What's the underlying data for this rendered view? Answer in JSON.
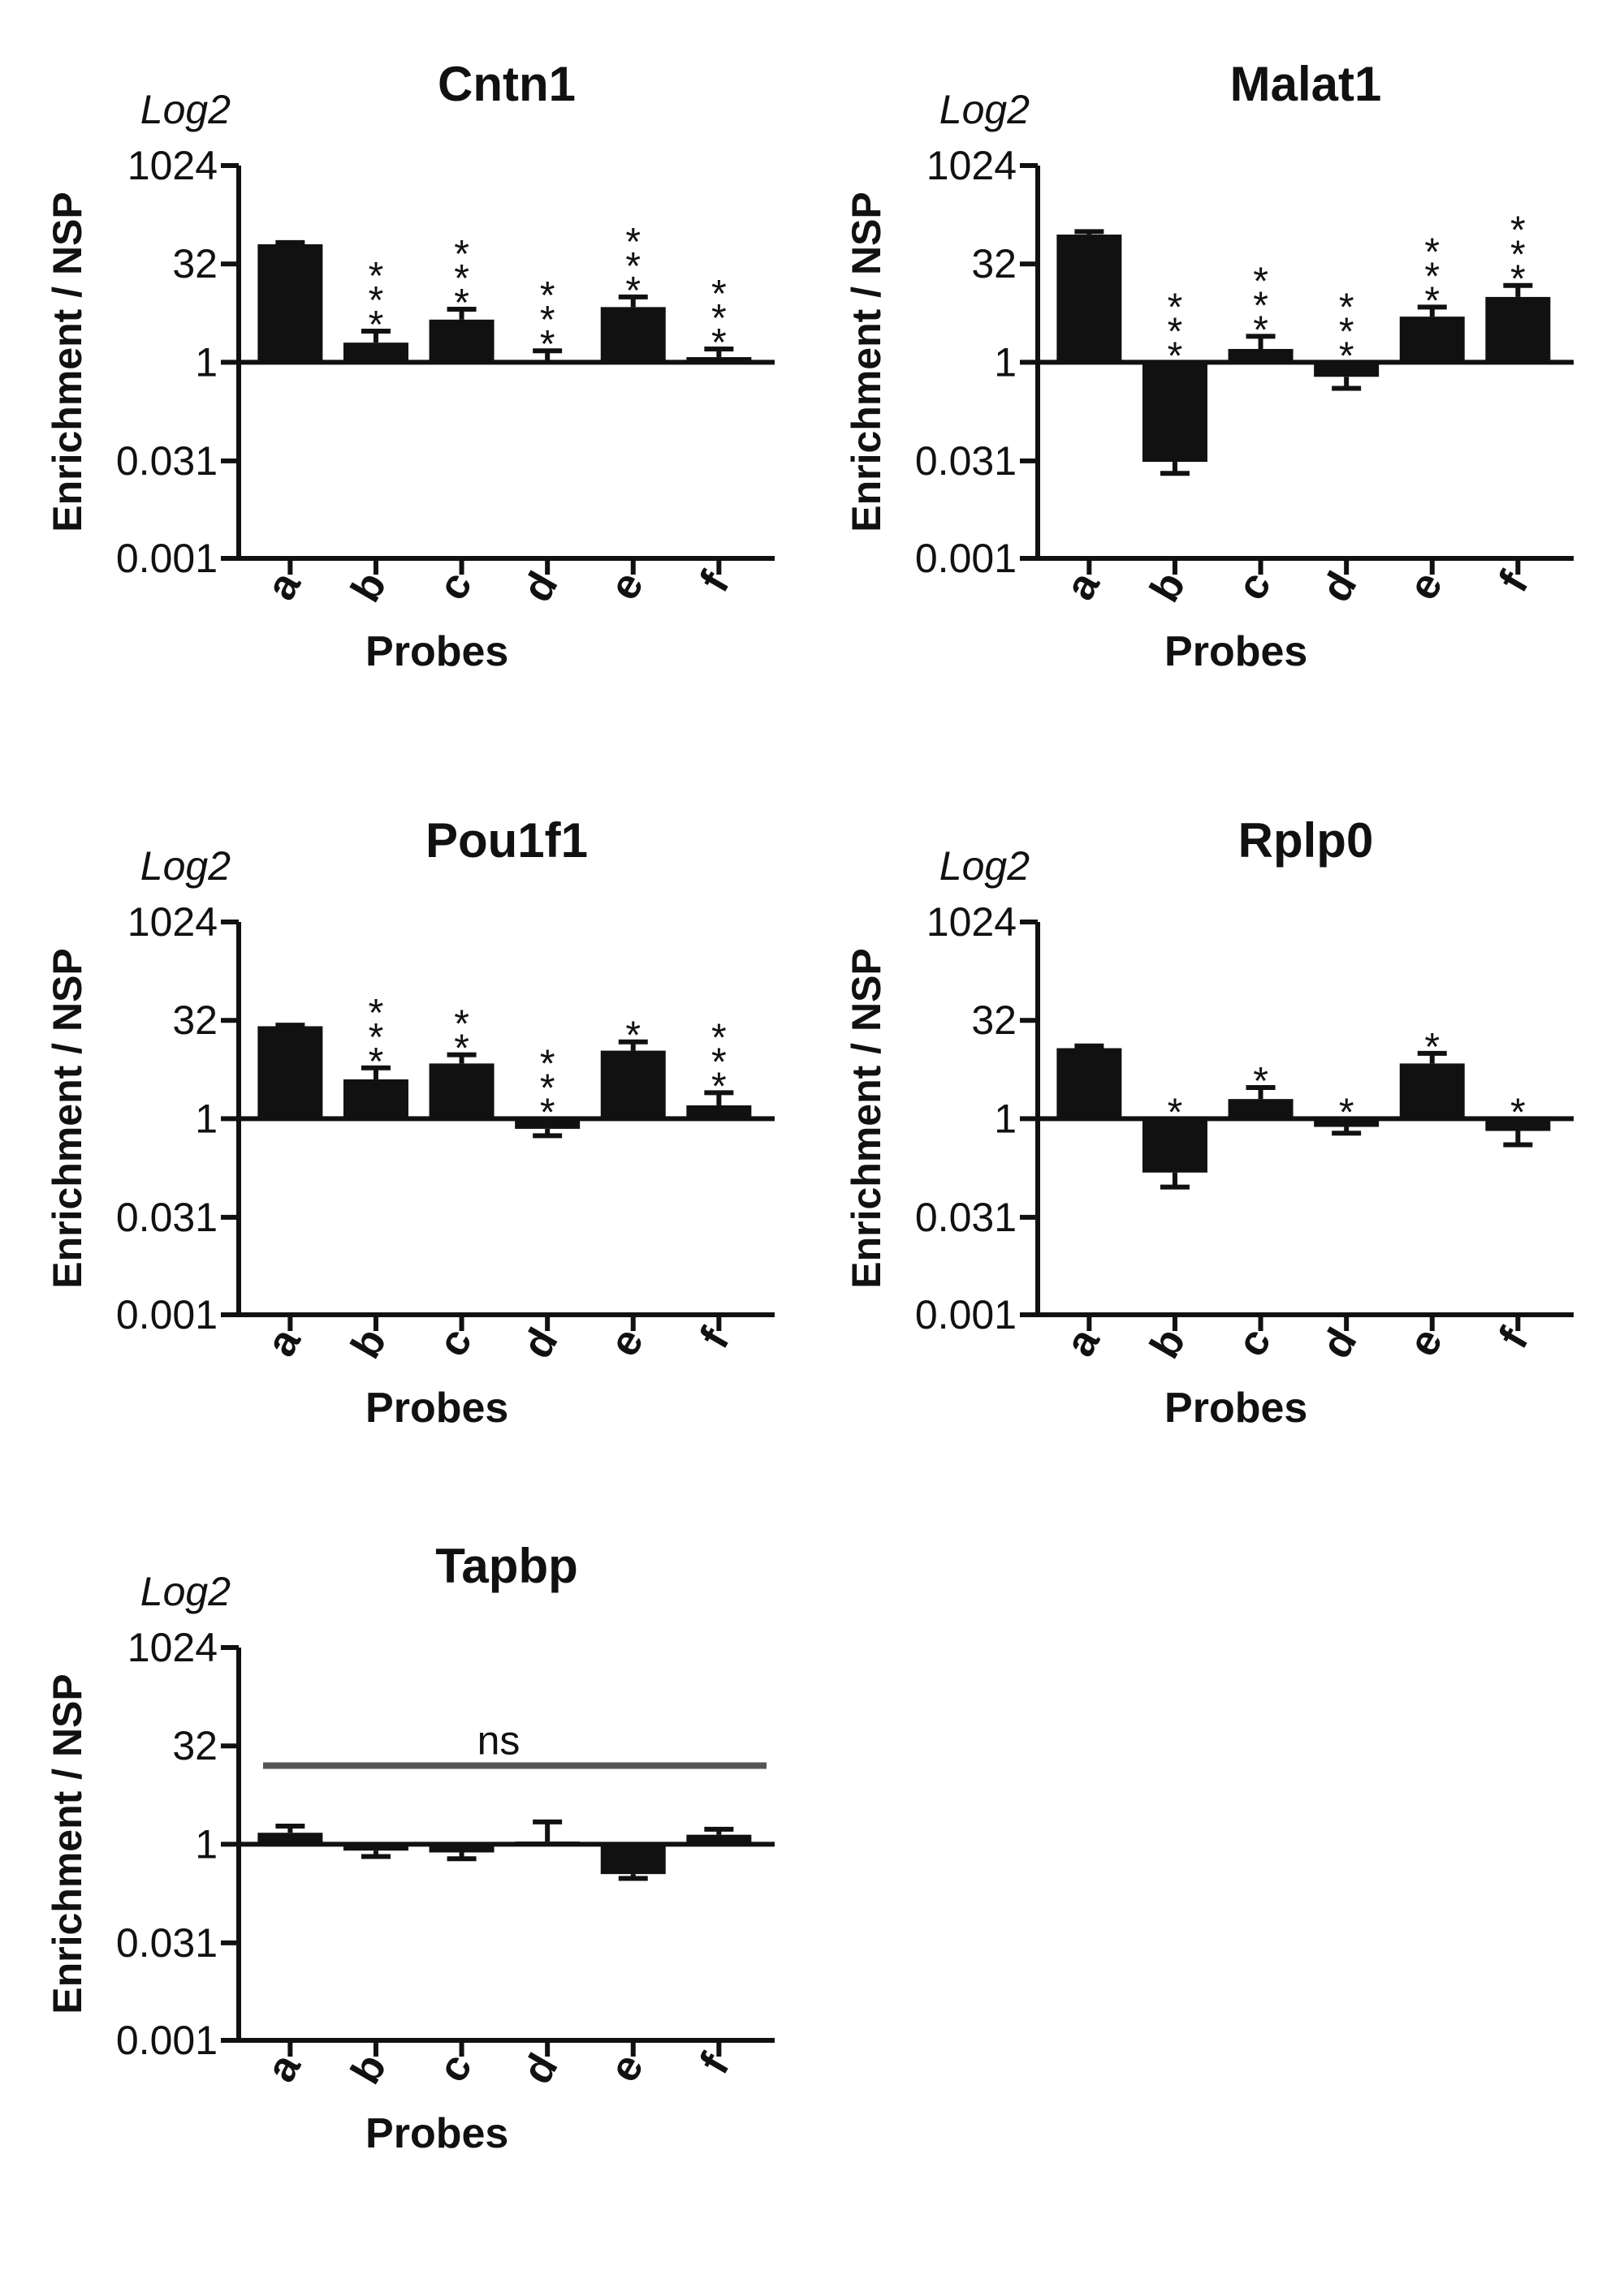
{
  "chart_data": [
    {
      "type": "bar",
      "title": "Cntn1",
      "scale_label": "Log2",
      "ylabel": "Enrichment / NSP",
      "xlabel": "Probes",
      "yscale": "log2",
      "ylim": [
        0.001,
        1024
      ],
      "yticks": [
        1024,
        32,
        1,
        0.031,
        0.001
      ],
      "ytick_labels": [
        "1024",
        "32",
        "1",
        "0.031",
        "0.001"
      ],
      "categories": [
        "a",
        "b",
        "c",
        "d",
        "e",
        "f"
      ],
      "values": [
        64,
        2,
        4.5,
        1.05,
        7,
        1.2
      ],
      "error_upper": [
        68,
        3,
        6.5,
        1.5,
        10,
        1.6
      ],
      "significance": [
        "",
        "***",
        "***",
        "***",
        "***",
        "***"
      ],
      "annotation": ""
    },
    {
      "type": "bar",
      "title": "Malat1",
      "scale_label": "Log2",
      "ylabel": "Enrichment / NSP",
      "xlabel": "Probes",
      "yscale": "log2",
      "ylim": [
        0.001,
        1024
      ],
      "yticks": [
        1024,
        32,
        1,
        0.031,
        0.001
      ],
      "ytick_labels": [
        "1024",
        "32",
        "1",
        "0.031",
        "0.001"
      ],
      "categories": [
        "a",
        "b",
        "c",
        "d",
        "e",
        "f"
      ],
      "values": [
        90,
        0.03,
        1.6,
        0.6,
        5,
        10
      ],
      "error_lower": [
        90,
        0.02,
        1.6,
        0.4,
        5,
        10
      ],
      "error_upper": [
        100,
        0.03,
        2.5,
        0.6,
        7,
        15
      ],
      "significance": [
        "",
        "***",
        "***",
        "***",
        "***",
        "***"
      ],
      "annotation": ""
    },
    {
      "type": "bar",
      "title": "Pou1f1",
      "scale_label": "Log2",
      "ylabel": "Enrichment / NSP",
      "xlabel": "Probes",
      "yscale": "log2",
      "ylim": [
        0.001,
        1024
      ],
      "yticks": [
        1024,
        32,
        1,
        0.031,
        0.001
      ],
      "ytick_labels": [
        "1024",
        "32",
        "1",
        "0.031",
        "0.001"
      ],
      "categories": [
        "a",
        "b",
        "c",
        "d",
        "e",
        "f"
      ],
      "values": [
        26,
        4,
        7,
        0.7,
        11,
        1.6
      ],
      "error_lower": [
        26,
        4,
        7,
        0.55,
        11,
        1.6
      ],
      "error_upper": [
        27,
        6,
        9.5,
        0.7,
        15,
        2.5
      ],
      "significance": [
        "",
        "***",
        "**",
        "***",
        "*",
        "***"
      ],
      "annotation": ""
    },
    {
      "type": "bar",
      "title": "Rplp0",
      "scale_label": "Log2",
      "ylabel": "Enrichment / NSP",
      "xlabel": "Probes",
      "yscale": "log2",
      "ylim": [
        0.001,
        1024
      ],
      "yticks": [
        1024,
        32,
        1,
        0.031,
        0.001
      ],
      "ytick_labels": [
        "1024",
        "32",
        "1",
        "0.031",
        "0.001"
      ],
      "categories": [
        "a",
        "b",
        "c",
        "d",
        "e",
        "f"
      ],
      "values": [
        12,
        0.15,
        2,
        0.75,
        7,
        0.65
      ],
      "error_lower": [
        12,
        0.09,
        2,
        0.6,
        7,
        0.4
      ],
      "error_upper": [
        13,
        0.15,
        3,
        0.75,
        10,
        0.65
      ],
      "significance": [
        "",
        "*",
        "*",
        "*",
        "*",
        "*"
      ],
      "annotation": ""
    },
    {
      "type": "bar",
      "title": "Tapbp",
      "scale_label": "Log2",
      "ylabel": "Enrichment / NSP",
      "xlabel": "Probes",
      "yscale": "log2",
      "ylim": [
        0.001,
        1024
      ],
      "yticks": [
        1024,
        32,
        1,
        0.031,
        0.001
      ],
      "ytick_labels": [
        "1024",
        "32",
        "1",
        "0.031",
        "0.001"
      ],
      "categories": [
        "a",
        "b",
        "c",
        "d",
        "e",
        "f"
      ],
      "values": [
        1.5,
        0.8,
        0.75,
        1.1,
        0.35,
        1.4
      ],
      "error_lower": [
        1.5,
        0.65,
        0.6,
        1.1,
        0.3,
        1.4
      ],
      "error_upper": [
        1.9,
        0.8,
        0.75,
        2.2,
        0.35,
        1.7
      ],
      "significance": [
        "",
        "",
        "",
        "",
        "",
        ""
      ],
      "annotation": "ns"
    }
  ]
}
